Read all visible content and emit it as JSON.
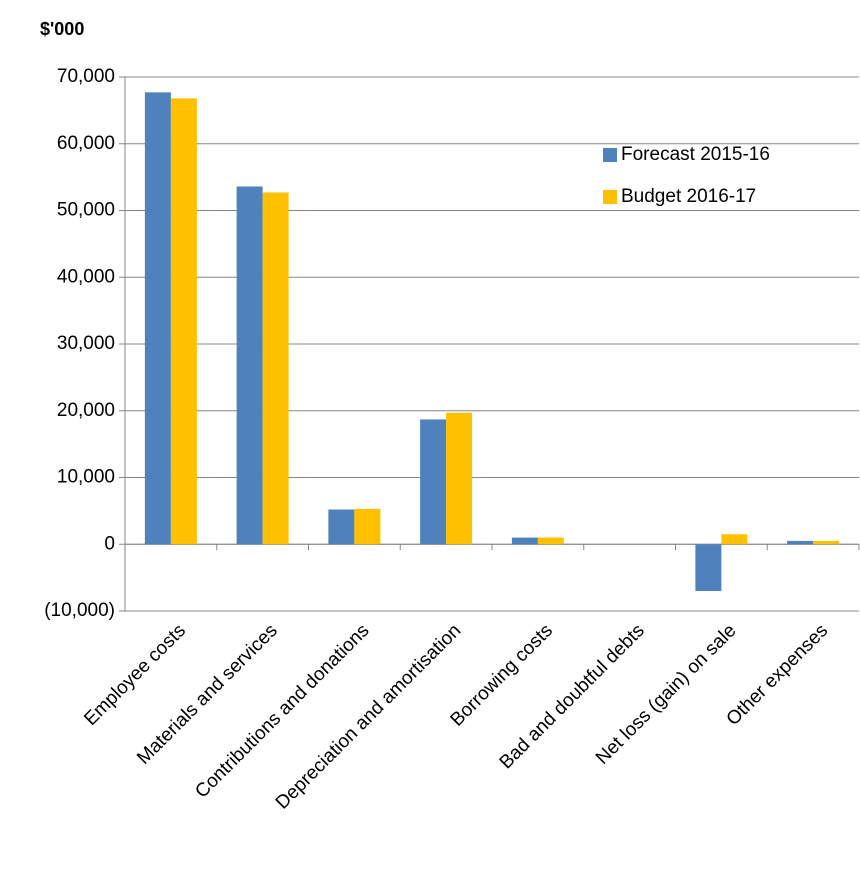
{
  "chart_data": {
    "type": "bar",
    "y_label": "$'000",
    "categories": [
      "Employee costs",
      "Materials and services",
      "Contributions and donations",
      "Depreciation and amortisation",
      "Borrowing costs",
      "Bad and doubtful debts",
      "Net loss (gain) on sale",
      "Other expenses"
    ],
    "series": [
      {
        "name": "Forecast 2015-16",
        "color": "#4f81bd",
        "values": [
          67700,
          53600,
          5200,
          18700,
          1000,
          0,
          -7000,
          500
        ]
      },
      {
        "name": "Budget 2016-17",
        "color": "#ffc000",
        "values": [
          66800,
          52700,
          5300,
          19700,
          1000,
          0,
          1500,
          500
        ]
      }
    ],
    "ylim": [
      -10000,
      70000
    ],
    "yticks": [
      {
        "value": -10000,
        "label": "(10,000)"
      },
      0,
      {
        "value": 10000,
        "label": "10,000"
      },
      {
        "value": 20000,
        "label": "20,000"
      },
      {
        "value": 30000,
        "label": "30,000"
      },
      {
        "value": 40000,
        "label": "40,000"
      },
      {
        "value": 50000,
        "label": "50,000"
      },
      {
        "value": 60000,
        "label": "60,000"
      },
      {
        "value": 70000,
        "label": "70,000"
      }
    ],
    "grid": true,
    "legend": "upper right"
  }
}
